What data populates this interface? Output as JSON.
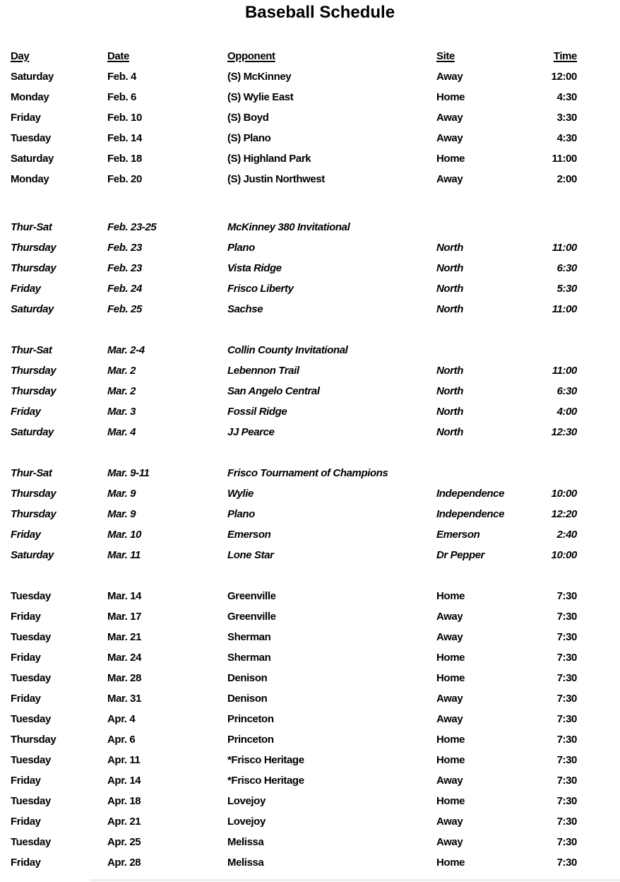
{
  "title": "Baseball Schedule",
  "columns": {
    "day": "Day",
    "date": "Date",
    "opponent": "Opponent",
    "site": "Site",
    "time": "Time"
  },
  "sections": [
    {
      "name": "scrimmages",
      "italic": false,
      "gap_before": 0,
      "rows": [
        {
          "day": "Saturday",
          "date": "Feb. 4",
          "opponent": "(S) McKinney",
          "site": "Away",
          "time": "12:00"
        },
        {
          "day": "Monday",
          "date": "Feb. 6",
          "opponent": "(S) Wylie East",
          "site": "Home",
          "time": "4:30"
        },
        {
          "day": "Friday",
          "date": "Feb. 10",
          "opponent": "(S) Boyd",
          "site": "Away",
          "time": "3:30"
        },
        {
          "day": "Tuesday",
          "date": "Feb. 14",
          "opponent": "(S) Plano",
          "site": "Away",
          "time": "4:30"
        },
        {
          "day": "Saturday",
          "date": "Feb. 18",
          "opponent": "(S) Highland Park",
          "site": "Home",
          "time": "11:00"
        },
        {
          "day": "Monday",
          "date": "Feb. 20",
          "opponent": "(S) Justin Northwest",
          "site": "Away",
          "time": "2:00"
        }
      ]
    },
    {
      "name": "mckinney-380-invitational",
      "italic": true,
      "gap_before": 39,
      "rows": [
        {
          "day": "Thur-Sat",
          "date": "Feb. 23-25",
          "opponent": "McKinney 380 Invitational",
          "site": "",
          "time": ""
        },
        {
          "day": "Thursday",
          "date": "Feb. 23",
          "opponent": "Plano",
          "site": "North",
          "time": "11:00"
        },
        {
          "day": "Thursday",
          "date": "Feb. 23",
          "opponent": "Vista Ridge",
          "site": "North",
          "time": "6:30"
        },
        {
          "day": "Friday",
          "date": "Feb. 24",
          "opponent": "Frisco Liberty",
          "site": "North",
          "time": "5:30"
        },
        {
          "day": "Saturday",
          "date": "Feb. 25",
          "opponent": "Sachse",
          "site": "North",
          "time": "11:00"
        }
      ]
    },
    {
      "name": "collin-county-invitational",
      "italic": true,
      "gap_before": 29,
      "rows": [
        {
          "day": "Thur-Sat",
          "date": "Mar. 2-4",
          "opponent": "Collin County Invitational",
          "site": "",
          "time": ""
        },
        {
          "day": "Thursday",
          "date": "Mar. 2",
          "opponent": "Lebennon Trail",
          "site": "North",
          "time": "11:00"
        },
        {
          "day": "Thursday",
          "date": "Mar. 2",
          "opponent": "San Angelo Central",
          "site": "North",
          "time": "6:30"
        },
        {
          "day": "Friday",
          "date": "Mar. 3",
          "opponent": "Fossil Ridge",
          "site": "North",
          "time": "4:00"
        },
        {
          "day": "Saturday",
          "date": "Mar. 4",
          "opponent": "JJ Pearce",
          "site": "North",
          "time": "12:30"
        }
      ]
    },
    {
      "name": "frisco-tournament-of-champions",
      "italic": true,
      "gap_before": 29,
      "rows": [
        {
          "day": "Thur-Sat",
          "date": "Mar. 9-11",
          "opponent": "Frisco Tournament of Champions",
          "site": "",
          "time": ""
        },
        {
          "day": "Thursday",
          "date": "Mar. 9",
          "opponent": "Wylie",
          "site": "Independence",
          "time": "10:00"
        },
        {
          "day": "Thursday",
          "date": "Mar. 9",
          "opponent": "Plano",
          "site": "Independence",
          "time": "12:20"
        },
        {
          "day": "Friday",
          "date": "Mar. 10",
          "opponent": "Emerson",
          "site": "Emerson",
          "time": "2:40"
        },
        {
          "day": "Saturday",
          "date": "Mar. 11",
          "opponent": "Lone Star",
          "site": "Dr Pepper",
          "time": "10:00"
        }
      ]
    },
    {
      "name": "district-games",
      "italic": false,
      "gap_before": 29,
      "rows": [
        {
          "day": "Tuesday",
          "date": "Mar. 14",
          "opponent": "Greenville",
          "site": "Home",
          "time": "7:30"
        },
        {
          "day": "Friday",
          "date": "Mar. 17",
          "opponent": "Greenville",
          "site": "Away",
          "time": "7:30"
        },
        {
          "day": "Tuesday",
          "date": "Mar. 21",
          "opponent": "Sherman",
          "site": "Away",
          "time": "7:30"
        },
        {
          "day": "Friday",
          "date": "Mar. 24",
          "opponent": "Sherman",
          "site": "Home",
          "time": "7:30"
        },
        {
          "day": "Tuesday",
          "date": "Mar. 28",
          "opponent": "Denison",
          "site": "Home",
          "time": "7:30"
        },
        {
          "day": "Friday",
          "date": "Mar. 31",
          "opponent": "Denison",
          "site": "Away",
          "time": "7:30"
        },
        {
          "day": "Tuesday",
          "date": "Apr. 4",
          "opponent": "Princeton",
          "site": "Away",
          "time": "7:30"
        },
        {
          "day": "Thursday",
          "date": "Apr. 6",
          "opponent": "Princeton",
          "site": "Home",
          "time": "7:30"
        },
        {
          "day": "Tuesday",
          "date": "Apr. 11",
          "opponent": "*Frisco Heritage",
          "site": "Home",
          "time": "7:30"
        },
        {
          "day": "Friday",
          "date": "Apr. 14",
          "opponent": "*Frisco Heritage",
          "site": "Away",
          "time": "7:30"
        },
        {
          "day": "Tuesday",
          "date": "Apr. 18",
          "opponent": "Lovejoy",
          "site": "Home",
          "time": "7:30"
        },
        {
          "day": "Friday",
          "date": "Apr. 21",
          "opponent": "Lovejoy",
          "site": "Away",
          "time": "7:30"
        },
        {
          "day": "Tuesday",
          "date": "Apr. 25",
          "opponent": "Melissa",
          "site": "Away",
          "time": "7:30"
        },
        {
          "day": "Friday",
          "date": "Apr. 28",
          "opponent": "Melissa",
          "site": "Home",
          "time": "7:30"
        }
      ]
    }
  ],
  "divider_color": "#ededed"
}
